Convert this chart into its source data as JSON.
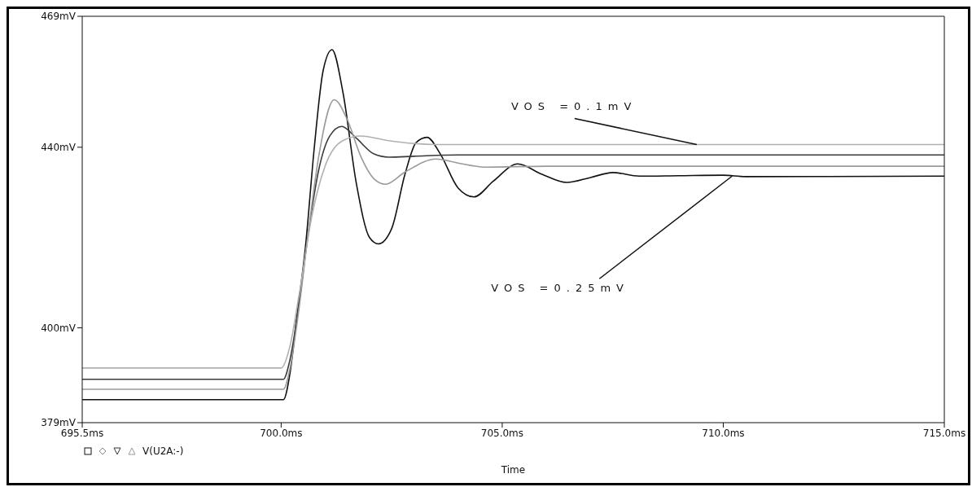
{
  "chart_data": {
    "type": "line",
    "xlabel": "Time",
    "annotations": [
      {
        "text": "VOS =0.1mV",
        "x": 709.4,
        "y": 440.6
      },
      {
        "text": "VOS =0.25mV",
        "x": 710.2,
        "y": 433.6
      },
      "V(U2A:-)"
    ],
    "xlim": [
      695.5,
      715
    ],
    "xticks": [
      {
        "value": 695.5,
        "label": "695.5ms"
      },
      {
        "value": 700,
        "label": "700.0ms"
      },
      {
        "value": 705,
        "label": "705.0ms"
      },
      {
        "value": 710,
        "label": "710.0ms"
      },
      {
        "value": 715,
        "label": "715.0ms"
      }
    ],
    "ylim": [
      379,
      469
    ],
    "yticks": [
      {
        "value": 379,
        "label": "379mV"
      },
      {
        "value": 400,
        "label": "400mV"
      },
      {
        "value": 440,
        "label": "440mV"
      },
      {
        "value": 469,
        "label": "469mV"
      }
    ],
    "series": [
      {
        "color": "#111111",
        "x": [
          695.5,
          700.05,
          700.2,
          700.35,
          700.55,
          700.75,
          700.95,
          701.15,
          701.4,
          701.7,
          702.0,
          702.2,
          702.5,
          702.8,
          703.05,
          703.3,
          703.6,
          704.0,
          704.36,
          704.8,
          705.35,
          705.9,
          706.46,
          707.0,
          707.5,
          708.1,
          709.0,
          710.0,
          710.5,
          715
        ],
        "values": [
          384.1,
          384.1,
          390,
          402,
          418,
          440,
          457,
          461.6,
          452,
          432,
          420,
          418.6,
          422,
          434,
          441,
          442.2,
          438.5,
          431,
          429,
          432.5,
          436.3,
          434,
          432.2,
          433.3,
          434.4,
          433.6,
          433.7,
          433.8,
          433.5,
          433.6
        ]
      },
      {
        "color": "#3a3a3a",
        "x": [
          695.5,
          700.05,
          700.2,
          700.4,
          700.6,
          700.85,
          701.1,
          701.37,
          701.7,
          702.1,
          702.43,
          703,
          704,
          715
        ],
        "values": [
          388.6,
          388.6,
          393,
          405,
          420,
          435,
          442.5,
          444.6,
          442,
          438.5,
          437.8,
          438,
          438.3,
          438.3
        ]
      },
      {
        "color": "#9a9a9a",
        "x": [
          695.5,
          700.05,
          700.2,
          700.4,
          700.6,
          700.85,
          701.2,
          701.5,
          701.8,
          702.1,
          702.36,
          702.8,
          703.5,
          704.0,
          704.6,
          706,
          715
        ],
        "values": [
          386.4,
          386.4,
          391,
          404,
          420,
          438,
          450.5,
          446,
          438,
          433,
          431.8,
          434.5,
          437.4,
          436.5,
          435.6,
          435.8,
          435.8
        ]
      },
      {
        "color": "#b0b0b0",
        "x": [
          695.5,
          700.0,
          700.2,
          700.4,
          700.7,
          701.0,
          701.4,
          701.8,
          702.4,
          703.5,
          715
        ],
        "values": [
          391.1,
          391.1,
          396,
          407,
          425,
          436,
          441.5,
          442.5,
          441.5,
          440.6,
          440.6
        ]
      }
    ]
  }
}
